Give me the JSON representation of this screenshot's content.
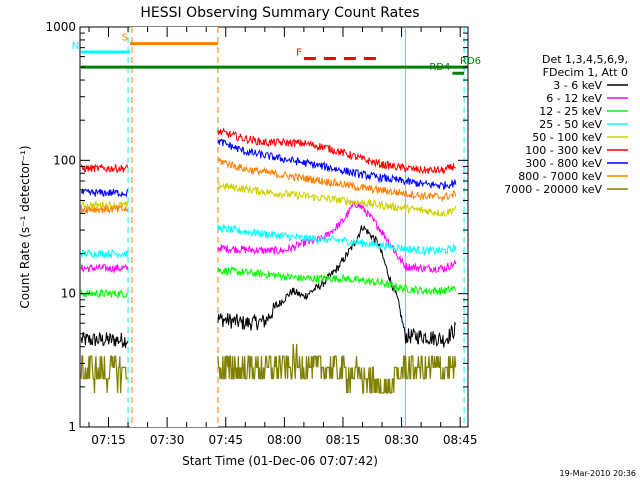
{
  "chart_data": {
    "type": "line",
    "title": "HESSI Observing Summary Count Rates",
    "xlabel": "Start Time (01-Dec-06 07:07:42)",
    "ylabel": "Count Rate (s⁻¹ detector⁻¹)",
    "y_scale": "log",
    "ylim": [
      1,
      1000
    ],
    "xlim": [
      "07:07:42",
      "08:47:00"
    ],
    "x_ticks": [
      "07:15",
      "07:30",
      "07:45",
      "08:00",
      "08:15",
      "08:30",
      "08:45"
    ],
    "y_ticks": [
      "1",
      "10",
      "100",
      "1000"
    ],
    "grid": false,
    "legend_position": "right",
    "legend_header": [
      "Det 1,3,4,5,6,9,",
      "FDecim 1, Att 0"
    ],
    "gaps": [
      [
        "07:20:30",
        "07:43:00"
      ]
    ],
    "series": [
      {
        "name": "3 - 6 keV",
        "color": "#000000",
        "segments": [
          {
            "x": [
              "07:08",
              "07:20"
            ],
            "y": [
              4.5,
              4.5
            ]
          },
          {
            "x": [
              "07:43",
              "07:50",
              "07:55",
              "07:58",
              "08:02",
              "08:05",
              "08:10",
              "08:14",
              "08:18",
              "08:20",
              "08:24",
              "08:27",
              "08:29",
              "08:31",
              "08:36",
              "08:41",
              "08:44"
            ],
            "y": [
              6.5,
              6.0,
              6.2,
              8.0,
              10.5,
              9.5,
              12,
              16,
              24,
              32,
              24,
              13,
              9,
              4.8,
              4.8,
              4.5,
              5.5
            ]
          }
        ]
      },
      {
        "name": "6 - 12 keV",
        "color": "#ff00ff",
        "segments": [
          {
            "x": [
              "07:08",
              "07:20"
            ],
            "y": [
              15.5,
              15.5
            ]
          },
          {
            "x": [
              "07:43",
              "07:55",
              "08:00",
              "08:05",
              "08:10",
              "08:15",
              "08:18",
              "08:20",
              "08:24",
              "08:27",
              "08:29",
              "08:31",
              "08:36",
              "08:41",
              "08:44"
            ],
            "y": [
              22,
              21,
              21,
              24,
              26,
              35,
              48,
              44,
              32,
              24,
              19,
              16,
              15.5,
              15.5,
              17
            ]
          }
        ]
      },
      {
        "name": "12 - 25 keV",
        "color": "#00ff00",
        "segments": [
          {
            "x": [
              "07:08",
              "07:20"
            ],
            "y": [
              10,
              10
            ]
          },
          {
            "x": [
              "07:43",
              "07:55",
              "08:05",
              "08:15",
              "08:20",
              "08:25",
              "08:30",
              "08:36",
              "08:41",
              "08:44"
            ],
            "y": [
              15,
              14,
              13,
              13,
              12.5,
              12,
              11,
              10.5,
              10.5,
              11
            ]
          }
        ]
      },
      {
        "name": "25 - 50 keV",
        "color": "#00ffff",
        "segments": [
          {
            "x": [
              "07:08",
              "07:20"
            ],
            "y": [
              20,
              20
            ]
          },
          {
            "x": [
              "07:43",
              "07:55",
              "08:05",
              "08:15",
              "08:25",
              "08:30",
              "08:36",
              "08:41",
              "08:44"
            ],
            "y": [
              31,
              28,
              26,
              25,
              23,
              22,
              21,
              21,
              22
            ]
          }
        ]
      },
      {
        "name": "50 - 100 keV",
        "color": "#d0d000",
        "segments": [
          {
            "x": [
              "07:08",
              "07:20"
            ],
            "y": [
              46,
              46
            ]
          },
          {
            "x": [
              "07:43",
              "07:55",
              "08:05",
              "08:15",
              "08:25",
              "08:30",
              "08:36",
              "08:41",
              "08:44"
            ],
            "y": [
              65,
              58,
              54,
              50,
              46,
              44,
              42,
              40,
              44
            ]
          }
        ]
      },
      {
        "name": "100 - 300 keV",
        "color": "#ff0000",
        "segments": [
          {
            "x": [
              "07:08",
              "07:20"
            ],
            "y": [
              87,
              87
            ]
          },
          {
            "x": [
              "07:43",
              "07:50",
              "07:55",
              "08:00",
              "08:05",
              "08:10",
              "08:15",
              "08:20",
              "08:25",
              "08:30",
              "08:36",
              "08:41",
              "08:44"
            ],
            "y": [
              165,
              145,
              136,
              136,
              134,
              126,
              114,
              102,
              93,
              88,
              84,
              84,
              92
            ]
          }
        ]
      },
      {
        "name": "300 - 800 keV",
        "color": "#0000ff",
        "segments": [
          {
            "x": [
              "07:08",
              "07:20"
            ],
            "y": [
              57,
              57
            ]
          },
          {
            "x": [
              "07:43",
              "07:50",
              "08:00",
              "08:10",
              "08:20",
              "08:30",
              "08:36",
              "08:41",
              "08:44"
            ],
            "y": [
              140,
              116,
              102,
              90,
              78,
              70,
              66,
              65,
              68
            ]
          }
        ]
      },
      {
        "name": "800 - 7000 keV",
        "color": "#ff8000",
        "segments": [
          {
            "x": [
              "07:08",
              "07:20"
            ],
            "y": [
              43,
              43
            ]
          },
          {
            "x": [
              "07:43",
              "07:50",
              "08:00",
              "08:10",
              "08:20",
              "08:30",
              "08:36",
              "08:41",
              "08:44"
            ],
            "y": [
              100,
              86,
              77,
              70,
              62,
              57,
              54,
              53,
              56
            ]
          }
        ]
      },
      {
        "name": "7000 - 20000 keV",
        "color": "#808000",
        "segments": [
          {
            "x": [
              "07:08",
              "07:20"
            ],
            "y": [
              2.6,
              2.6
            ]
          },
          {
            "x": [
              "07:43",
              "08:05",
              "08:10",
              "08:17",
              "08:20",
              "08:27",
              "08:29",
              "08:31",
              "08:44"
            ],
            "y": [
              2.7,
              2.9,
              2.8,
              2.5,
              2.3,
              1.8,
              2.4,
              2.7,
              2.8
            ]
          }
        ]
      }
    ],
    "annotations": [
      {
        "label": "S",
        "color": "#ff8000",
        "x": [
          "07:20:30",
          "07:43:00"
        ],
        "y": 750
      },
      {
        "label": "N",
        "color": "#00ffff",
        "x": [
          "07:08",
          "07:20:30"
        ],
        "y": 650
      },
      {
        "label": "F",
        "color": "#ff0000",
        "x": [
          "08:05",
          "08:24"
        ],
        "y": 580,
        "dashed": true
      },
      {
        "label": "",
        "color": "#008000",
        "x": [
          "07:08",
          "08:47"
        ],
        "y": 500
      },
      {
        "label": "RD6",
        "color": "#008000",
        "x": [
          "08:47",
          "08:47"
        ],
        "y": 500
      },
      {
        "label": "RD4",
        "color": "#008000",
        "x": [
          "08:43",
          "08:46"
        ],
        "y": 450
      }
    ],
    "vlines": [
      {
        "x": "07:20:00",
        "color": "#00ffff",
        "style": "dashed"
      },
      {
        "x": "07:21:00",
        "color": "#ff8000",
        "style": "dashed"
      },
      {
        "x": "07:43:00",
        "color": "#ff8000",
        "style": "dashed"
      },
      {
        "x": "08:31:00",
        "color": "#00ffff",
        "style": "solid"
      },
      {
        "x": "08:46:00",
        "color": "#00ffff",
        "style": "dashed"
      }
    ],
    "timestamp": "19-Mar-2010 20:36"
  }
}
